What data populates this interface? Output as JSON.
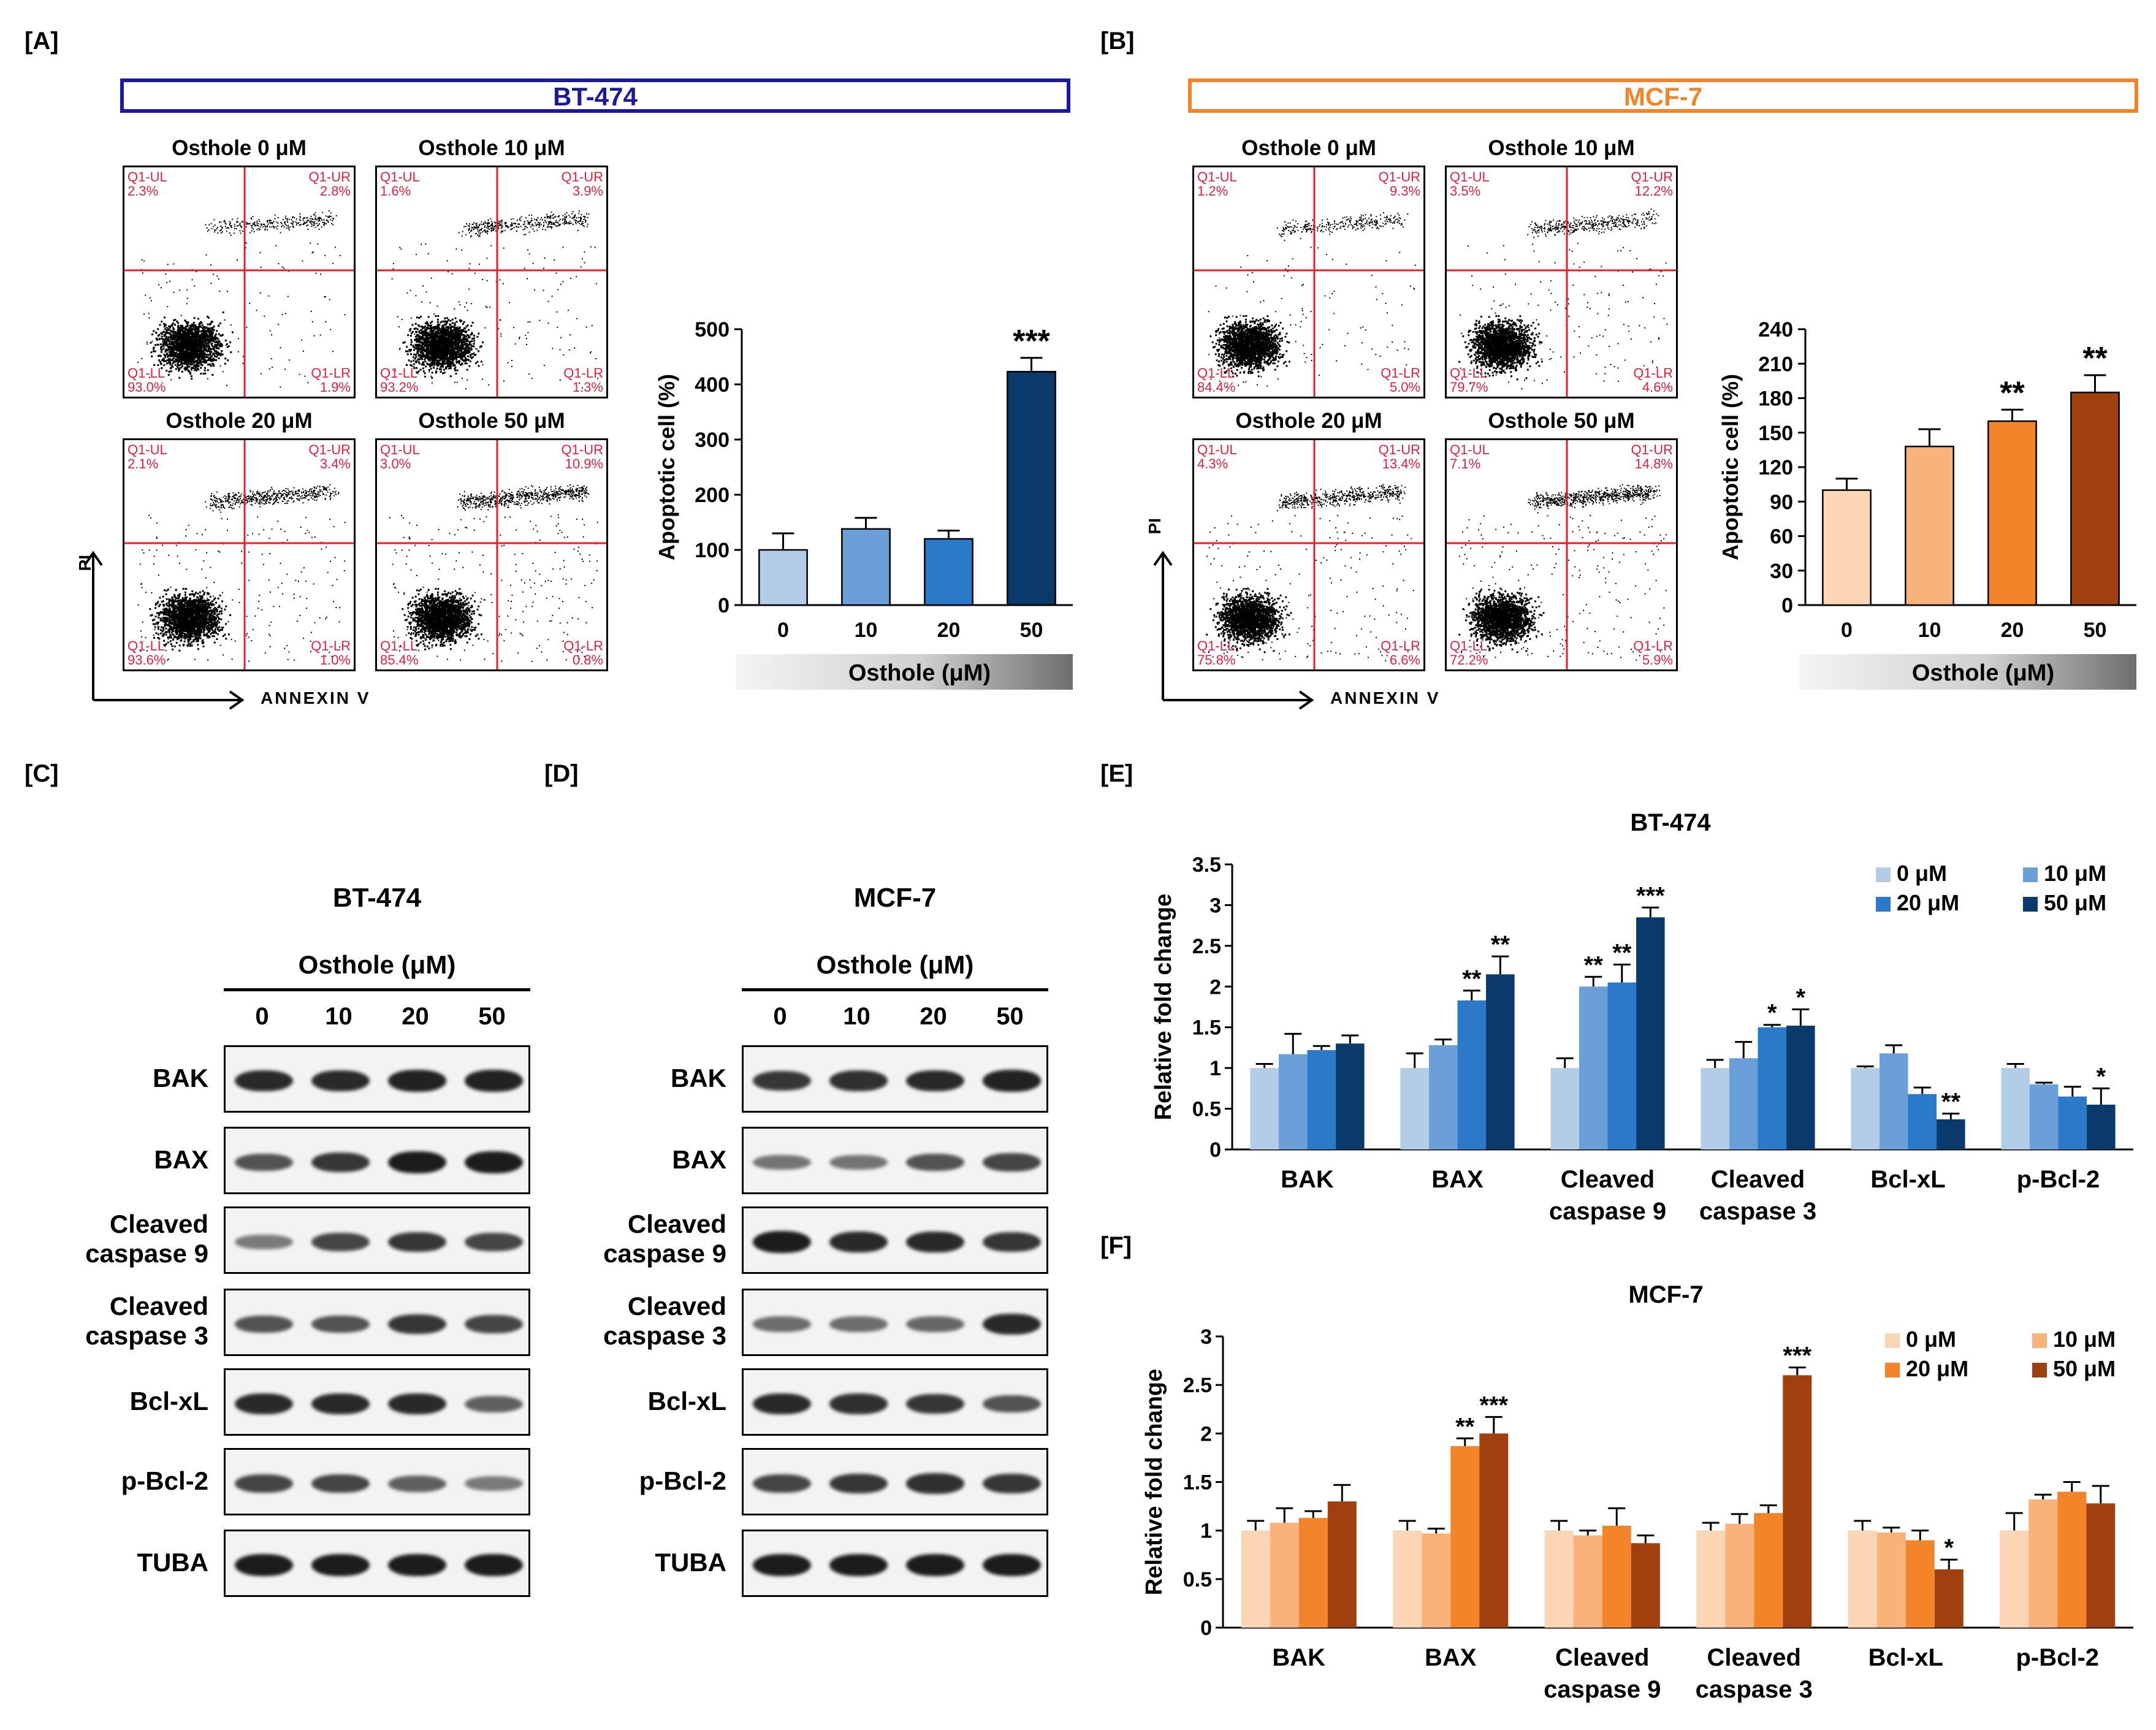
{
  "panels": {
    "A": "[A]",
    "B": "[B]",
    "C": "[C]",
    "D": "[D]",
    "E": "[E]",
    "F": "[F]"
  },
  "cell_lines": {
    "bt474": "BT-474",
    "mcf7": "MCF-7"
  },
  "flow": {
    "axis_y": "PI",
    "axis_x": "ANNEXIN V",
    "bt474": [
      {
        "title": "Osthole 0 μM",
        "ul": "Q1-UL\n2.3%",
        "ur": "Q1-UR\n2.8%",
        "ll": "Q1-LL\n93.0%",
        "lr": "Q1-LR\n1.9%"
      },
      {
        "title": "Osthole 10 μM",
        "ul": "Q1-UL\n1.6%",
        "ur": "Q1-UR\n3.9%",
        "ll": "Q1-LL\n93.2%",
        "lr": "Q1-LR\n1.3%"
      },
      {
        "title": "Osthole 20 μM",
        "ul": "Q1-UL\n2.1%",
        "ur": "Q1-UR\n3.4%",
        "ll": "Q1-LL\n93.6%",
        "lr": "Q1-LR\n1.0%"
      },
      {
        "title": "Osthole 50 μM",
        "ul": "Q1-UL\n3.0%",
        "ur": "Q1-UR\n10.9%",
        "ll": "Q1-LL\n85.4%",
        "lr": "Q1-LR\n0.8%"
      }
    ],
    "mcf7": [
      {
        "title": "Osthole 0 μM",
        "ul": "Q1-UL\n1.2%",
        "ur": "Q1-UR\n9.3%",
        "ll": "Q1-LL\n84.4%",
        "lr": "Q1-LR\n5.0%"
      },
      {
        "title": "Osthole 10 μM",
        "ul": "Q1-UL\n3.5%",
        "ur": "Q1-UR\n12.2%",
        "ll": "Q1-LL\n79.7%",
        "lr": "Q1-LR\n4.6%"
      },
      {
        "title": "Osthole 20 μM",
        "ul": "Q1-UL\n4.3%",
        "ur": "Q1-UR\n13.4%",
        "ll": "Q1-LL\n75.8%",
        "lr": "Q1-LR\n6.6%"
      },
      {
        "title": "Osthole 50 μM",
        "ul": "Q1-UL\n7.1%",
        "ur": "Q1-UR\n14.8%",
        "ll": "Q1-LL\n72.2%",
        "lr": "Q1-LR\n5.9%"
      }
    ]
  },
  "western": {
    "treatment_label": "Osthole (μM)",
    "doses": [
      "0",
      "10",
      "20",
      "50"
    ],
    "proteins": [
      "BAK",
      "BAX",
      "Cleaved\ncaspase 9",
      "Cleaved\ncaspase 3",
      "Bcl-xL",
      "p-Bcl-2",
      "TUBA"
    ]
  },
  "chart_data": [
    {
      "id": "A-bar",
      "type": "bar",
      "title": "",
      "categories": [
        "0",
        "10",
        "20",
        "50"
      ],
      "values": [
        100,
        138,
        120,
        423
      ],
      "errors": [
        30,
        20,
        15,
        25
      ],
      "significance": [
        "",
        "",
        "",
        "***"
      ],
      "ylabel": "Apoptotic cell (%)",
      "xlabel": "Osthole (μM)",
      "ylim": [
        0,
        500
      ],
      "yticks": [
        0,
        100,
        200,
        300,
        400,
        500
      ],
      "colors": [
        "#b3cde9",
        "#6a9fd8",
        "#2a7ac9",
        "#0a3a6b"
      ]
    },
    {
      "id": "B-bar",
      "type": "bar",
      "title": "",
      "categories": [
        "0",
        "10",
        "20",
        "50"
      ],
      "values": [
        100,
        138,
        160,
        185
      ],
      "errors": [
        10,
        15,
        10,
        15
      ],
      "significance": [
        "",
        "",
        "**",
        "**"
      ],
      "ylabel": "Apoptotic cell (%)",
      "xlabel": "Osthole (μM)",
      "ylim": [
        0,
        240
      ],
      "yticks": [
        0,
        30,
        60,
        90,
        120,
        150,
        180,
        210,
        240
      ],
      "colors": [
        "#fcd5b5",
        "#f9b27a",
        "#f4842a",
        "#a0400e"
      ]
    },
    {
      "id": "E",
      "type": "bar",
      "title": "BT-474",
      "categories": [
        "BAK",
        "BAX",
        "Cleaved\ncaspase 9",
        "Cleaved\ncaspase 3",
        "Bcl-xL",
        "p-Bcl-2"
      ],
      "series": [
        {
          "name": "0 μM",
          "values": [
            1.0,
            1.0,
            1.0,
            1.0,
            1.0,
            1.0
          ],
          "errors": [
            0.05,
            0.18,
            0.12,
            0.1,
            0.02,
            0.05
          ]
        },
        {
          "name": "10 μM",
          "values": [
            1.17,
            1.28,
            2.0,
            1.12,
            1.18,
            0.8
          ],
          "errors": [
            0.25,
            0.07,
            0.12,
            0.2,
            0.1,
            0.02
          ]
        },
        {
          "name": "20 μM",
          "values": [
            1.22,
            1.83,
            2.05,
            1.5,
            0.68,
            0.65
          ],
          "errors": [
            0.05,
            0.12,
            0.22,
            0.03,
            0.08,
            0.12
          ]
        },
        {
          "name": "50 μM",
          "values": [
            1.3,
            2.15,
            2.85,
            1.52,
            0.37,
            0.55
          ],
          "errors": [
            0.1,
            0.22,
            0.12,
            0.2,
            0.07,
            0.2
          ]
        }
      ],
      "significance": [
        [
          "",
          "",
          "",
          ""
        ],
        [
          "",
          "",
          "**",
          "**"
        ],
        [
          "",
          "**",
          "**",
          "***"
        ],
        [
          "",
          "",
          "*",
          "*"
        ],
        [
          "",
          "",
          "",
          "**"
        ],
        [
          "",
          "",
          "",
          "*"
        ]
      ],
      "ylabel": "Relative fold change",
      "ylim": [
        0,
        3.5
      ],
      "yticks": [
        "0",
        "0.5",
        "1",
        "1.5",
        "2",
        "2.5",
        "3",
        "3.5"
      ],
      "colors": [
        "#b3cde9",
        "#6a9fd8",
        "#2a7ac9",
        "#0a3a6b"
      ]
    },
    {
      "id": "F",
      "type": "bar",
      "title": "MCF-7",
      "categories": [
        "BAK",
        "BAX",
        "Cleaved\ncaspase 9",
        "Cleaved\ncaspase 3",
        "Bcl-xL",
        "p-Bcl-2"
      ],
      "series": [
        {
          "name": "0 μM",
          "values": [
            1.0,
            1.0,
            1.0,
            1.0,
            1.0,
            1.0
          ],
          "errors": [
            0.1,
            0.1,
            0.1,
            0.08,
            0.1,
            0.18
          ]
        },
        {
          "name": "10 μM",
          "values": [
            1.08,
            0.97,
            0.95,
            1.07,
            0.98,
            1.32
          ],
          "errors": [
            0.15,
            0.05,
            0.05,
            0.1,
            0.05,
            0.05
          ]
        },
        {
          "name": "20 μM",
          "values": [
            1.13,
            1.87,
            1.05,
            1.18,
            0.9,
            1.4
          ],
          "errors": [
            0.07,
            0.08,
            0.18,
            0.08,
            0.1,
            0.1
          ]
        },
        {
          "name": "50 μM",
          "values": [
            1.3,
            2.0,
            0.87,
            2.6,
            0.6,
            1.28
          ],
          "errors": [
            0.17,
            0.17,
            0.08,
            0.08,
            0.1,
            0.18
          ]
        }
      ],
      "significance": [
        [
          "",
          "",
          "",
          ""
        ],
        [
          "",
          "",
          "**",
          "***"
        ],
        [
          "",
          "",
          "",
          ""
        ],
        [
          "",
          "",
          "",
          "***"
        ],
        [
          "",
          "",
          "",
          "*"
        ],
        [
          "",
          "",
          "",
          ""
        ]
      ],
      "ylabel": "Relative fold change",
      "ylim": [
        0,
        3
      ],
      "yticks": [
        "0",
        "0.5",
        "1",
        "1.5",
        "2",
        "2.5",
        "3"
      ],
      "colors": [
        "#fcd5b5",
        "#f9b27a",
        "#f4842a",
        "#a0400e"
      ]
    }
  ]
}
